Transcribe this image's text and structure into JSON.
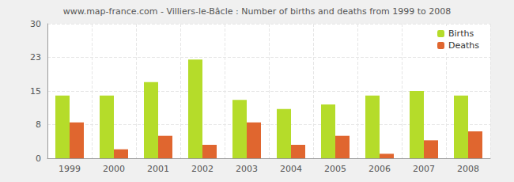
{
  "chart_data": {
    "type": "bar",
    "title": "www.map-france.com - Villiers-le-Bâcle : Number of births and deaths from 1999 to 2008",
    "categories": [
      "1999",
      "2000",
      "2001",
      "2002",
      "2003",
      "2004",
      "2005",
      "2006",
      "2007",
      "2008"
    ],
    "series": [
      {
        "name": "Births",
        "color": "#b5dc2a",
        "values": [
          14,
          14,
          17,
          22,
          13,
          11,
          12,
          14,
          15,
          14
        ]
      },
      {
        "name": "Deaths",
        "color": "#e0662f",
        "values": [
          8,
          2,
          5,
          3,
          8,
          3,
          5,
          1,
          4,
          6
        ]
      }
    ],
    "ylim": [
      0,
      30
    ],
    "yticks": [
      0,
      {
        "value": 7.5,
        "label": "8"
      },
      15,
      {
        "value": 22.5,
        "label": "23"
      },
      30
    ],
    "grid": true,
    "legend": "upper right"
  }
}
